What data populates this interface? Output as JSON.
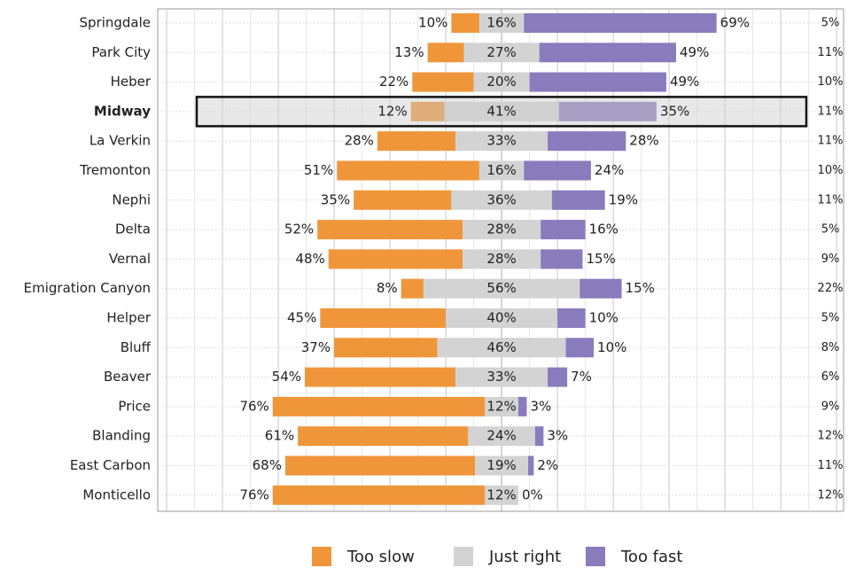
{
  "chart_data": {
    "type": "diverging_bar",
    "categories": [
      "Springdale",
      "Park City",
      "Heber",
      "Midway",
      "La Verkin",
      "Tremonton",
      "Nephi",
      "Delta",
      "Vernal",
      "Emigration Canyon",
      "Helper",
      "Bluff",
      "Beaver",
      "Price",
      "Blanding",
      "East Carbon",
      "Monticello"
    ],
    "highlight": "Midway",
    "xlim": [
      -123.2,
      122.5
    ],
    "grid": true,
    "series": [
      {
        "name": "Too slow",
        "color": "#f0963a",
        "values": [
          10,
          13,
          22,
          12,
          28,
          51,
          35,
          52,
          48,
          8,
          45,
          37,
          54,
          76,
          61,
          68,
          76
        ],
        "value_labels": [
          "10%",
          "13%",
          "22%",
          "12%",
          "28%",
          "51%",
          "35%",
          "52%",
          "48%",
          "8%",
          "45%",
          "37%",
          "54%",
          "76%",
          "61%",
          "68%",
          "76%"
        ]
      },
      {
        "name": "Just right",
        "color": "#d3d3d3",
        "values": [
          16,
          27,
          20,
          41,
          33,
          16,
          36,
          28,
          28,
          56,
          40,
          46,
          33,
          12,
          24,
          19,
          12
        ],
        "value_labels": [
          "16%",
          "27%",
          "20%",
          "41%",
          "33%",
          "16%",
          "36%",
          "28%",
          "28%",
          "56%",
          "40%",
          "46%",
          "33%",
          "12%",
          "24%",
          "19%",
          "12%"
        ]
      },
      {
        "name": "Too fast",
        "color": "#8a7bbd",
        "values": [
          69,
          49,
          49,
          35,
          28,
          24,
          19,
          16,
          15,
          15,
          10,
          10,
          7,
          3,
          3,
          2,
          0
        ],
        "value_labels": [
          "69%",
          "49%",
          "49%",
          "35%",
          "28%",
          "24%",
          "19%",
          "16%",
          "15%",
          "15%",
          "10%",
          "10%",
          "7%",
          "3%",
          "3%",
          "2%",
          "0%"
        ]
      },
      {
        "values": [
          5,
          11,
          10,
          11,
          11,
          10,
          11,
          5,
          9,
          22,
          5,
          8,
          6,
          9,
          12,
          11,
          12
        ],
        "value_labels": [
          "5%",
          "11%",
          "10%",
          "11%",
          "11%",
          "10%",
          "11%",
          "5%",
          "9%",
          "22%",
          "5%",
          "8%",
          "6%",
          "9%",
          "12%",
          "11%",
          "12%"
        ]
      }
    ]
  }
}
